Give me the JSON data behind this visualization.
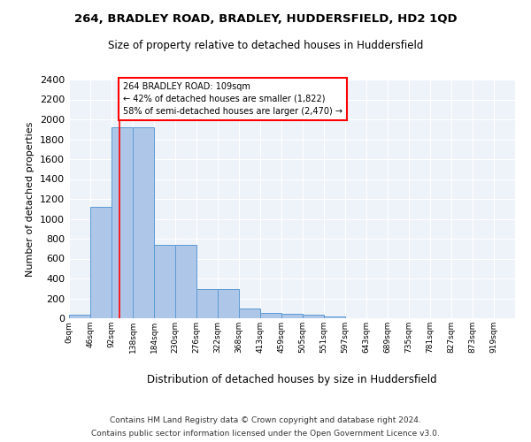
{
  "title1": "264, BRADLEY ROAD, BRADLEY, HUDDERSFIELD, HD2 1QD",
  "title2": "Size of property relative to detached houses in Huddersfield",
  "xlabel": "Distribution of detached houses by size in Huddersfield",
  "ylabel": "Number of detached properties",
  "footer1": "Contains HM Land Registry data © Crown copyright and database right 2024.",
  "footer2": "Contains public sector information licensed under the Open Government Licence v3.0.",
  "bar_labels": [
    "0sqm",
    "46sqm",
    "92sqm",
    "138sqm",
    "184sqm",
    "230sqm",
    "276sqm",
    "322sqm",
    "368sqm",
    "413sqm",
    "459sqm",
    "505sqm",
    "551sqm",
    "597sqm",
    "643sqm",
    "689sqm",
    "735sqm",
    "781sqm",
    "827sqm",
    "873sqm",
    "919sqm"
  ],
  "bar_heights": [
    35,
    1120,
    1920,
    1920,
    740,
    740,
    295,
    295,
    100,
    50,
    45,
    35,
    20,
    0,
    0,
    0,
    0,
    0,
    0,
    0,
    0
  ],
  "bar_color": "#aec6e8",
  "bar_edge_color": "#5b9bd5",
  "property_line_label": "264 BRADLEY ROAD: 109sqm",
  "annotation_line1": "← 42% of detached houses are smaller (1,822)",
  "annotation_line2": "58% of semi-detached houses are larger (2,470) →",
  "vline_color": "red",
  "bg_color": "#eef2f9",
  "ylim": [
    0,
    2400
  ],
  "bin_width": 46,
  "property_sqm": 109,
  "num_bins": 21
}
